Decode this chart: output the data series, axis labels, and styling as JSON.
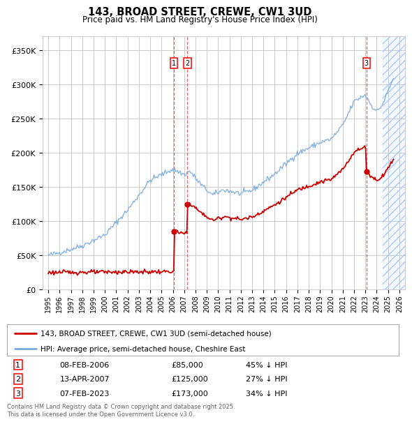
{
  "title": "143, BROAD STREET, CREWE, CW1 3UD",
  "subtitle": "Price paid vs. HM Land Registry's House Price Index (HPI)",
  "ylim": [
    0,
    370000
  ],
  "yticks": [
    0,
    50000,
    100000,
    150000,
    200000,
    250000,
    300000,
    350000
  ],
  "ytick_labels": [
    "£0",
    "£50K",
    "£100K",
    "£150K",
    "£200K",
    "£250K",
    "£300K",
    "£350K"
  ],
  "bg_color": "#ffffff",
  "grid_color": "#cccccc",
  "sale_color": "#cc0000",
  "hpi_color": "#7aabe0",
  "transaction_dates": [
    2006.1,
    2007.28,
    2023.1
  ],
  "transaction_prices": [
    85000,
    125000,
    173000
  ],
  "transaction_labels": [
    "1",
    "2",
    "3"
  ],
  "transaction_info": [
    [
      "1",
      "08-FEB-2006",
      "£85,000",
      "45% ↓ HPI"
    ],
    [
      "2",
      "13-APR-2007",
      "£125,000",
      "27% ↓ HPI"
    ],
    [
      "3",
      "07-FEB-2023",
      "£173,000",
      "34% ↓ HPI"
    ]
  ],
  "legend_entry1": "143, BROAD STREET, CREWE, CW1 3UD (semi-detached house)",
  "legend_entry2": "HPI: Average price, semi-detached house, Cheshire East",
  "footer": "Contains HM Land Registry data © Crown copyright and database right 2025.\nThis data is licensed under the Open Government Licence v3.0.",
  "shaded_region_after": 2024.5,
  "xlim_left": 1994.5,
  "xlim_right": 2026.5,
  "xtick_start": 1995,
  "xtick_end": 2026
}
